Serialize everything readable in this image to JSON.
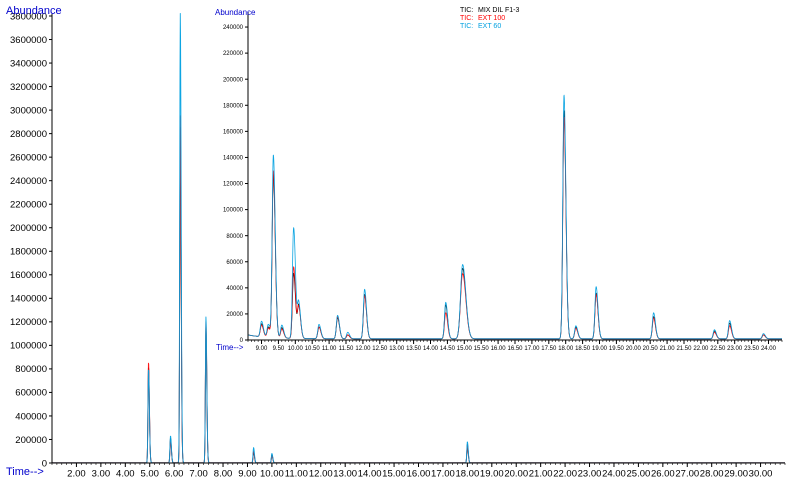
{
  "chart_data": [
    {
      "type": "line",
      "ylabel": "Abundance",
      "xlabel": "Time-->",
      "xlim": [
        1.0,
        31.0
      ],
      "ylim": [
        0,
        3800000
      ],
      "y_ticks": [
        0,
        200000,
        400000,
        600000,
        800000,
        1000000,
        1200000,
        1400000,
        1600000,
        1800000,
        2000000,
        2200000,
        2400000,
        2600000,
        2800000,
        3000000,
        3200000,
        3400000,
        3600000,
        3800000
      ],
      "x_ticks": [
        2.0,
        3.0,
        4.0,
        5.0,
        6.0,
        7.0,
        8.0,
        9.0,
        10.0,
        11.0,
        12.0,
        13.0,
        14.0,
        15.0,
        16.0,
        17.0,
        18.0,
        19.0,
        20.0,
        21.0,
        22.0,
        23.0,
        24.0,
        25.0,
        26.0,
        27.0,
        28.0,
        29.0,
        30.0
      ],
      "series": [
        {
          "name": "MIX DIL F1-3",
          "color": "#000000",
          "peaks": [
            [
              4.95,
              820000
            ],
            [
              5.85,
              210000
            ],
            [
              6.25,
              2850000
            ],
            [
              7.3,
              1150000
            ],
            [
              9.25,
              90000
            ],
            [
              10.0,
              70000
            ],
            [
              18.0,
              150000
            ]
          ]
        },
        {
          "name": "EXT 100",
          "color": "#ff0000",
          "peaks": [
            [
              4.95,
              860000
            ],
            [
              5.85,
              190000
            ],
            [
              6.25,
              2950000
            ],
            [
              7.3,
              1200000
            ],
            [
              9.25,
              100000
            ],
            [
              10.0,
              60000
            ],
            [
              18.0,
              160000
            ]
          ]
        },
        {
          "name": "EXT 60",
          "color": "#00a0e0",
          "peaks": [
            [
              4.95,
              800000
            ],
            [
              5.85,
              230000
            ],
            [
              6.25,
              3820000
            ],
            [
              7.3,
              1240000
            ],
            [
              9.25,
              130000
            ],
            [
              10.0,
              80000
            ],
            [
              18.0,
              180000
            ]
          ]
        }
      ]
    },
    {
      "type": "line",
      "ylabel": "Abundance",
      "xlabel": "Time-->",
      "xlim": [
        8.6,
        24.4
      ],
      "ylim": [
        0,
        250000
      ],
      "y_ticks": [
        0,
        20000,
        40000,
        60000,
        80000,
        100000,
        120000,
        140000,
        160000,
        180000,
        200000,
        220000,
        240000
      ],
      "x_ticks": [
        "9.00",
        "9.50",
        "10.00",
        "10.50",
        "11.00",
        "11.50",
        "12.00",
        "12.50",
        "13.00",
        "13.50",
        "14.00",
        "14.50",
        "15.00",
        "15.50",
        "16.00",
        "16.50",
        "17.00",
        "17.50",
        "18.00",
        "18.50",
        "19.00",
        "19.50",
        "20.00",
        "20.50",
        "21.00",
        "21.50",
        "22.00",
        "22.50",
        "23.00",
        "23.50",
        "24.00"
      ],
      "legend_position": "top-center",
      "series": [
        {
          "name": "MIX DIL F1-3",
          "color": "#000000",
          "peaks": [
            [
              9.0,
              10000
            ],
            [
              9.2,
              8000
            ],
            [
              9.35,
              125000
            ],
            [
              9.6,
              8000
            ],
            [
              9.95,
              50000
            ],
            [
              10.1,
              25000
            ],
            [
              10.7,
              9000
            ],
            [
              11.25,
              16000
            ],
            [
              11.55,
              3000
            ],
            [
              12.05,
              34000
            ],
            [
              14.45,
              26000
            ],
            [
              14.95,
              54000
            ],
            [
              17.95,
              175000
            ],
            [
              18.3,
              9000
            ],
            [
              18.9,
              35000
            ],
            [
              20.6,
              17000
            ],
            [
              22.4,
              6000
            ],
            [
              22.85,
              12000
            ],
            [
              23.85,
              3000
            ]
          ]
        },
        {
          "name": "EXT 100",
          "color": "#ff0000",
          "peaks": [
            [
              9.0,
              9000
            ],
            [
              9.2,
              7000
            ],
            [
              9.35,
              128000
            ],
            [
              9.6,
              7000
            ],
            [
              9.95,
              55000
            ],
            [
              10.1,
              24000
            ],
            [
              10.7,
              9000
            ],
            [
              11.25,
              17000
            ],
            [
              11.55,
              3000
            ],
            [
              12.05,
              33000
            ],
            [
              14.45,
              20000
            ],
            [
              14.95,
              50000
            ],
            [
              17.95,
              170000
            ],
            [
              18.3,
              8000
            ],
            [
              18.9,
              34000
            ],
            [
              20.6,
              16000
            ],
            [
              22.4,
              5000
            ],
            [
              22.85,
              10000
            ],
            [
              23.85,
              3000
            ]
          ]
        },
        {
          "name": "EXT 60",
          "color": "#00a0e0",
          "peaks": [
            [
              9.0,
              12000
            ],
            [
              9.2,
              10000
            ],
            [
              9.35,
              140000
            ],
            [
              9.6,
              10000
            ],
            [
              9.95,
              85000
            ],
            [
              10.1,
              27000
            ],
            [
              10.7,
              11000
            ],
            [
              11.25,
              18000
            ],
            [
              11.55,
              5000
            ],
            [
              12.05,
              38000
            ],
            [
              14.45,
              28000
            ],
            [
              14.95,
              57000
            ],
            [
              17.95,
              187000
            ],
            [
              18.3,
              10000
            ],
            [
              18.9,
              40000
            ],
            [
              20.6,
              20000
            ],
            [
              22.4,
              7000
            ],
            [
              22.85,
              14000
            ],
            [
              23.85,
              4000
            ]
          ]
        }
      ]
    }
  ],
  "legend": {
    "rows": [
      {
        "prefix": "TIC:",
        "label": "MIX DIL F1-3",
        "color": "#000000"
      },
      {
        "prefix": "TIC:",
        "label": "EXT 100",
        "color": "#ff0000"
      },
      {
        "prefix": "TIC:",
        "label": "EXT 60",
        "color": "#00a0e0"
      }
    ]
  },
  "colors": {
    "axis_label": "#0000cc",
    "axis": "#000000"
  }
}
